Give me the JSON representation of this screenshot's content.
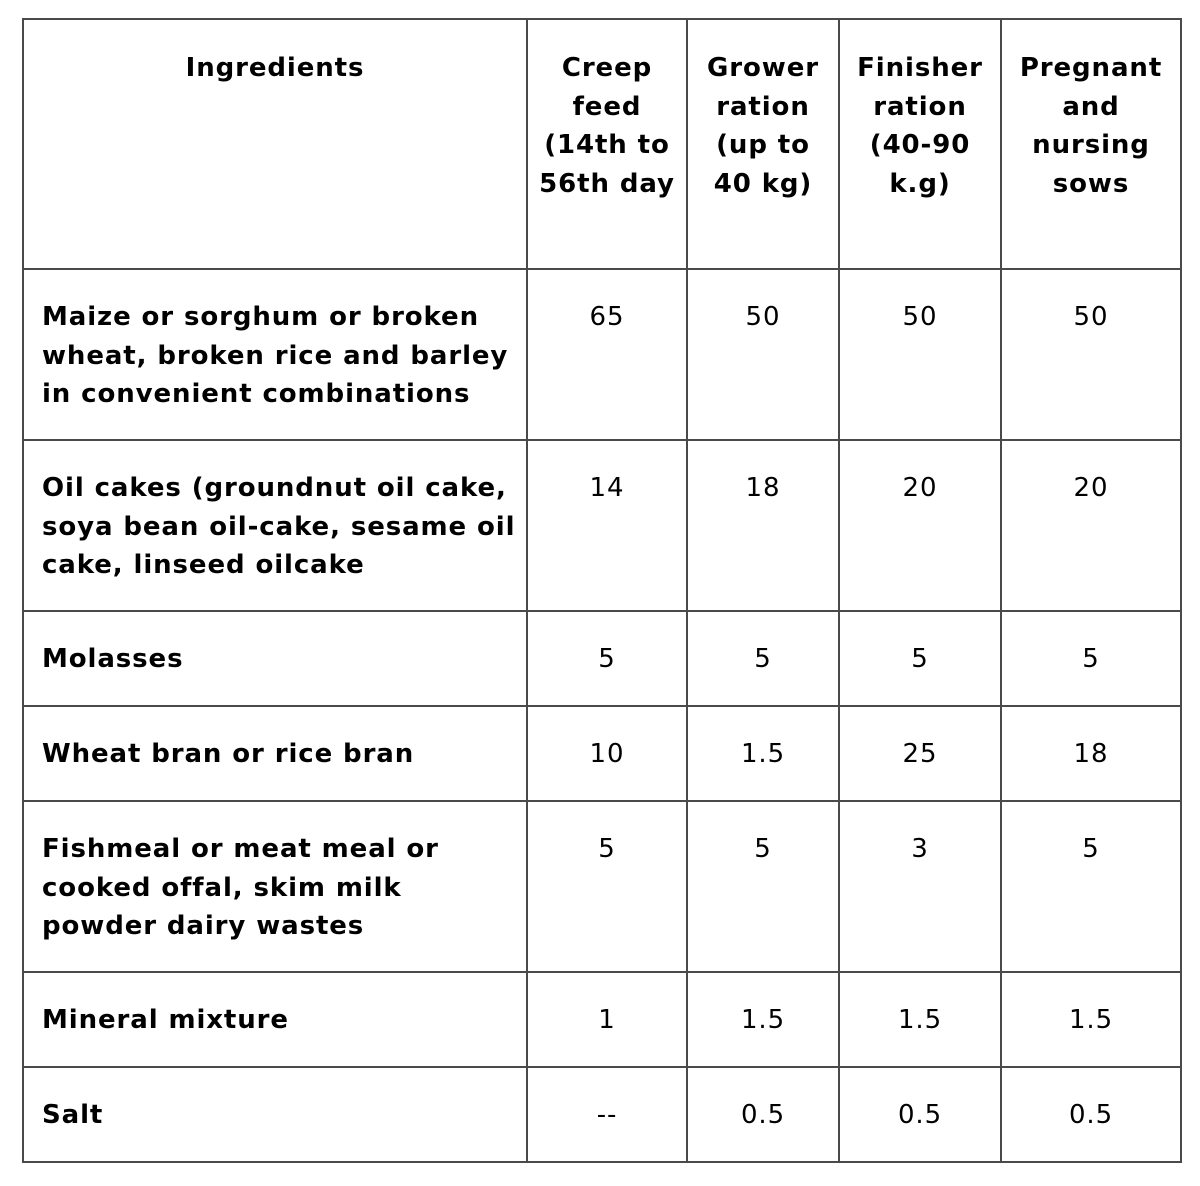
{
  "table": {
    "headers": [
      "Ingredients",
      "Creep feed (14th to 56th day",
      "Grower ration (up to 40 kg)",
      "Finisher ration (40-90 k.g)",
      "Pregnant and nursing sows"
    ],
    "rows": [
      {
        "ingredient": "Maize or sorghum or broken wheat, broken rice and barley in convenient combinations",
        "values": [
          "65",
          "50",
          "50",
          "50"
        ]
      },
      {
        "ingredient": "Oil cakes (groundnut oil cake, soya bean oil-cake, sesame oil cake, linseed oilcake",
        "values": [
          "14",
          "18",
          "20",
          "20"
        ]
      },
      {
        "ingredient": "Molasses",
        "values": [
          "5",
          "5",
          "5",
          "5"
        ]
      },
      {
        "ingredient": "Wheat bran or rice bran",
        "values": [
          "10",
          "1.5",
          "25",
          "18"
        ]
      },
      {
        "ingredient": "Fishmeal or meat meal or cooked offal, skim milk powder dairy wastes",
        "values": [
          "5",
          "5",
          "3",
          "5"
        ]
      },
      {
        "ingredient": "Mineral mixture",
        "values": [
          "1",
          "1.5",
          "1.5",
          "1.5"
        ]
      },
      {
        "ingredient": "Salt",
        "values": [
          "--",
          "0.5",
          "0.5",
          "0.5"
        ]
      }
    ]
  }
}
